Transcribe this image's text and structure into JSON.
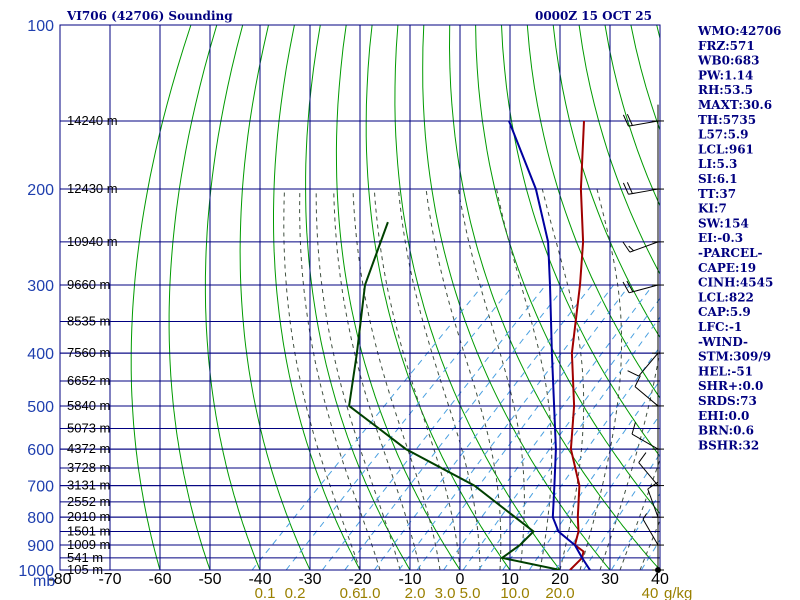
{
  "chart_data": {
    "type": "line",
    "title": "VI706 (42706) Sounding",
    "time": "0000Z 15 OCT 25",
    "y_axis_unit": "mb",
    "mixing_ratio_unit": "g/kg",
    "pressure_ticks": [
      100,
      200,
      300,
      400,
      500,
      600,
      700,
      800,
      900,
      1000
    ],
    "temperature_ticks": [
      -80,
      -70,
      -60,
      -50,
      -40,
      -30,
      -20,
      -10,
      0,
      10,
      20,
      30,
      40
    ],
    "temperature_tick_labels": [
      "-80",
      "-70",
      "-60",
      "-50",
      "-40",
      "-30",
      "-20",
      "-10",
      "0",
      "10",
      "20",
      "30",
      "40"
    ],
    "mixing_ratio_labels": [
      {
        "t": -39,
        "label": "0.1"
      },
      {
        "t": -33,
        "label": "0.2"
      },
      {
        "t": -22,
        "label": "0.6"
      },
      {
        "t": -18,
        "label": "1.0"
      },
      {
        "t": -9,
        "label": "2.0"
      },
      {
        "t": -3,
        "label": "3.0"
      },
      {
        "t": 2,
        "label": "5.0"
      },
      {
        "t": 11,
        "label": "10.0"
      },
      {
        "t": 20,
        "label": "20.0"
      },
      {
        "t": 38,
        "label": "40"
      }
    ],
    "height_labels": [
      {
        "p": 150,
        "label": "14240 m"
      },
      {
        "p": 200,
        "label": "12430 m"
      },
      {
        "p": 250,
        "label": "10940 m"
      },
      {
        "p": 300,
        "label": "9660 m"
      },
      {
        "p": 350,
        "label": "8535 m"
      },
      {
        "p": 400,
        "label": "7560 m"
      },
      {
        "p": 450,
        "label": "6652 m"
      },
      {
        "p": 500,
        "label": "5840 m"
      },
      {
        "p": 550,
        "label": "5073 m"
      },
      {
        "p": 600,
        "label": "4372 m"
      },
      {
        "p": 650,
        "label": "3728 m"
      },
      {
        "p": 700,
        "label": "3131 m"
      },
      {
        "p": 750,
        "label": "2552 m"
      },
      {
        "p": 800,
        "label": "2010 m"
      },
      {
        "p": 850,
        "label": "1501 m"
      },
      {
        "p": 900,
        "label": "1009 m"
      },
      {
        "p": 950,
        "label": "541 m"
      },
      {
        "p": 1000,
        "label": "105 m"
      }
    ],
    "series": [
      {
        "color": "#a00000",
        "points": [
          {
            "p": 1000,
            "t": 22
          },
          {
            "p": 950,
            "t": 22
          },
          {
            "p": 925,
            "t": 21
          },
          {
            "p": 900,
            "t": 18
          },
          {
            "p": 850,
            "t": 16
          },
          {
            "p": 800,
            "t": 13
          },
          {
            "p": 700,
            "t": 7
          },
          {
            "p": 600,
            "t": -2
          },
          {
            "p": 500,
            "t": -10
          },
          {
            "p": 400,
            "t": -21
          },
          {
            "p": 300,
            "t": -33
          },
          {
            "p": 250,
            "t": -41
          },
          {
            "p": 200,
            "t": -52
          },
          {
            "p": 150,
            "t": -65
          }
        ]
      },
      {
        "color": "#0000a0",
        "points": [
          {
            "p": 1000,
            "t": 26
          },
          {
            "p": 950,
            "t": 22
          },
          {
            "p": 900,
            "t": 18
          },
          {
            "p": 850,
            "t": 12
          },
          {
            "p": 800,
            "t": 8
          },
          {
            "p": 700,
            "t": 2
          },
          {
            "p": 600,
            "t": -5
          },
          {
            "p": 500,
            "t": -14
          },
          {
            "p": 400,
            "t": -25
          },
          {
            "p": 300,
            "t": -39
          },
          {
            "p": 250,
            "t": -48
          },
          {
            "p": 200,
            "t": -61
          },
          {
            "p": 150,
            "t": -80
          }
        ]
      },
      {
        "color": "#004000",
        "points": [
          {
            "p": 1000,
            "t": 20
          },
          {
            "p": 950,
            "t": 6
          },
          {
            "p": 900,
            "t": 7
          },
          {
            "p": 850,
            "t": 7
          },
          {
            "p": 700,
            "t": -14
          },
          {
            "p": 600,
            "t": -35
          },
          {
            "p": 500,
            "t": -55
          },
          {
            "p": 400,
            "t": -64
          },
          {
            "p": 300,
            "t": -76
          },
          {
            "p": 230,
            "t": -84
          }
        ]
      }
    ],
    "wind_barbs": [
      {
        "p": 150,
        "dir": 260,
        "spd": 20
      },
      {
        "p": 200,
        "dir": 260,
        "spd": 20
      },
      {
        "p": 250,
        "dir": 250,
        "spd": 15
      },
      {
        "p": 300,
        "dir": 255,
        "spd": 20
      },
      {
        "p": 400,
        "dir": 220,
        "spd": 10
      },
      {
        "p": 500,
        "dir": 310,
        "spd": 10
      },
      {
        "p": 600,
        "dir": 300,
        "spd": 10
      },
      {
        "p": 700,
        "dir": 320,
        "spd": 10
      },
      {
        "p": 800,
        "dir": 340,
        "spd": 10
      },
      {
        "p": 900,
        "dir": 330,
        "spd": 5
      },
      {
        "p": 1000,
        "dir": 0,
        "spd": 0
      }
    ]
  },
  "indices": [
    "WMO:42706",
    "FRZ:571",
    "WB0:683",
    "PW:1.14",
    "RH:53.5",
    "MAXT:30.6",
    "TH:5735",
    "L57:5.9",
    "LCL:961",
    "LI:5.3",
    "SI:6.1",
    "TT:37",
    "KI:7",
    "SW:154",
    "EI:-0.3",
    "-PARCEL-",
    "CAPE:19",
    "CINH:4545",
    "LCL:822",
    "CAP:5.9",
    "LFC:-1",
    "-WIND-",
    "STM:309/9",
    "HEL:-51",
    "SHR+:0.0",
    "SRDS:73",
    "EHI:0.0",
    "BRN:0.6",
    "BSHR:32"
  ]
}
